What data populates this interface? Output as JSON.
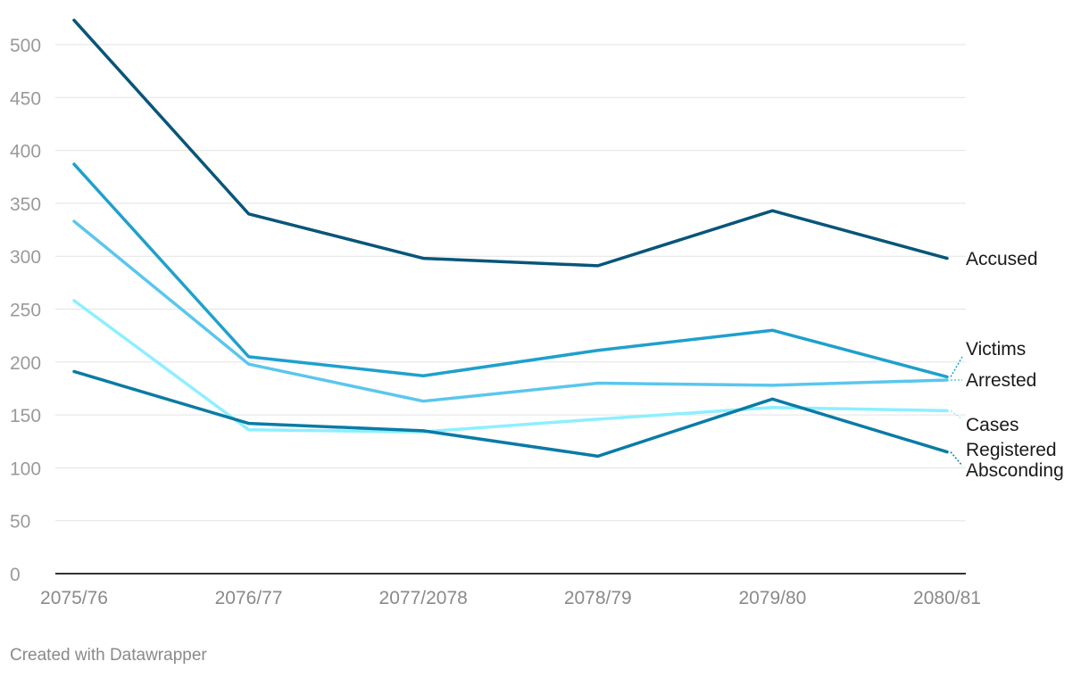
{
  "chart_data": {
    "type": "line",
    "title": "",
    "xlabel": "",
    "ylabel": "",
    "ylim": [
      0,
      500
    ],
    "yticks": [
      0,
      50,
      100,
      150,
      200,
      250,
      300,
      350,
      400,
      450,
      500
    ],
    "grid": true,
    "categories": [
      "2075/76",
      "2076/77",
      "2077/2078",
      "2078/79",
      "2079/80",
      "2080/81"
    ],
    "series": [
      {
        "name": "Accused",
        "color": "#08557a",
        "values": [
          523,
          340,
          298,
          291,
          343,
          298
        ]
      },
      {
        "name": "Victims",
        "color": "#1fa0cc",
        "values": [
          387,
          205,
          187,
          211,
          230,
          186
        ]
      },
      {
        "name": "Arrested",
        "color": "#5ac6ee",
        "values": [
          333,
          198,
          163,
          180,
          178,
          183
        ]
      },
      {
        "name": "Cases Registered",
        "label_lines": [
          "Cases",
          "Registered"
        ],
        "color": "#8defff",
        "values": [
          258,
          136,
          134,
          146,
          157,
          154
        ]
      },
      {
        "name": "Absconding",
        "color": "#0a7ba5",
        "values": [
          191,
          142,
          135,
          111,
          165,
          115
        ]
      }
    ]
  },
  "footer": {
    "credit": "Created with Datawrapper"
  }
}
